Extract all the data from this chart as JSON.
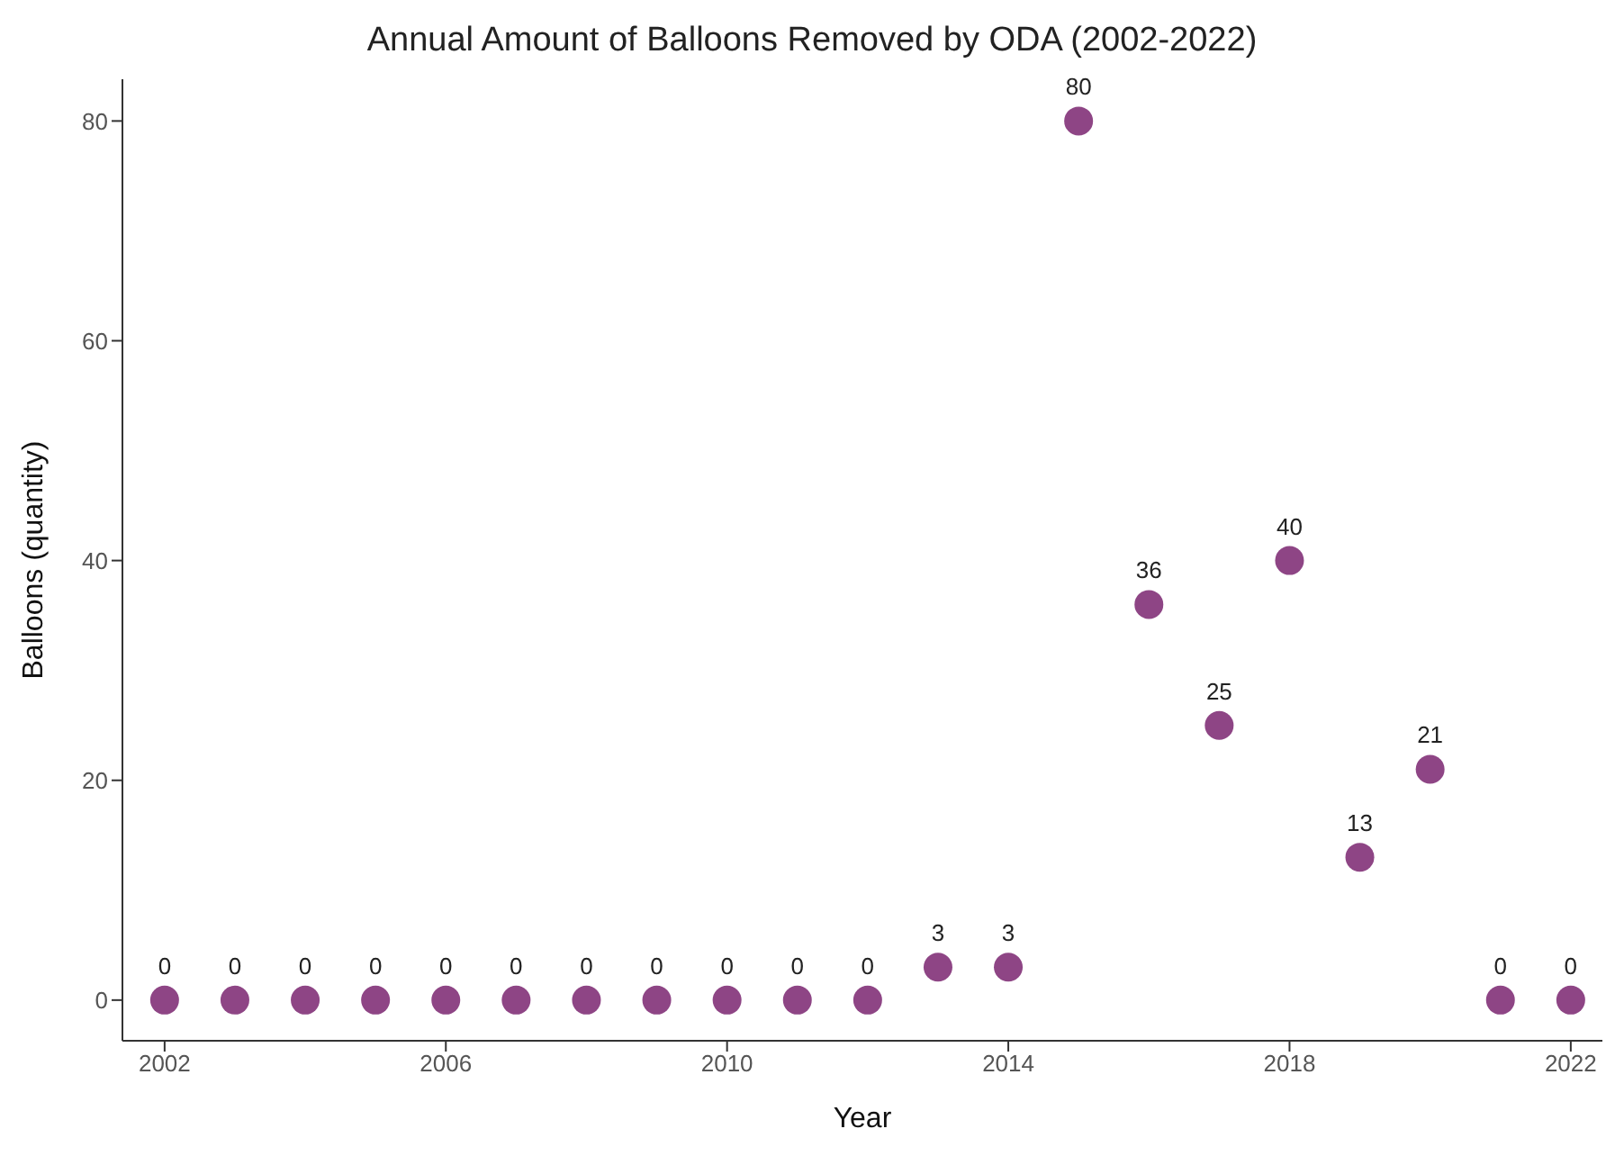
{
  "chart_data": {
    "type": "scatter",
    "title": "Annual Amount of Balloons Removed by ODA (2002-2022)",
    "xlabel": "Year",
    "ylabel": "Balloons (quantity)",
    "x": [
      2002,
      2003,
      2004,
      2005,
      2006,
      2007,
      2008,
      2009,
      2010,
      2011,
      2012,
      2013,
      2014,
      2015,
      2016,
      2017,
      2018,
      2019,
      2020,
      2021,
      2022
    ],
    "series": [
      {
        "color": "#8e4585",
        "values": [
          0,
          0,
          0,
          0,
          0,
          0,
          0,
          0,
          0,
          0,
          0,
          3,
          3,
          80,
          36,
          25,
          40,
          13,
          21,
          0,
          0
        ]
      }
    ],
    "xlim": [
      2001.4,
      2022.45
    ],
    "xticks": [
      2002,
      2006,
      2010,
      2014,
      2018,
      2022
    ],
    "ylim": [
      -3.7,
      83.8
    ],
    "yticks": [
      0,
      20,
      40,
      60,
      80
    ],
    "data_labels": true,
    "marker": "circle",
    "grid": false
  }
}
